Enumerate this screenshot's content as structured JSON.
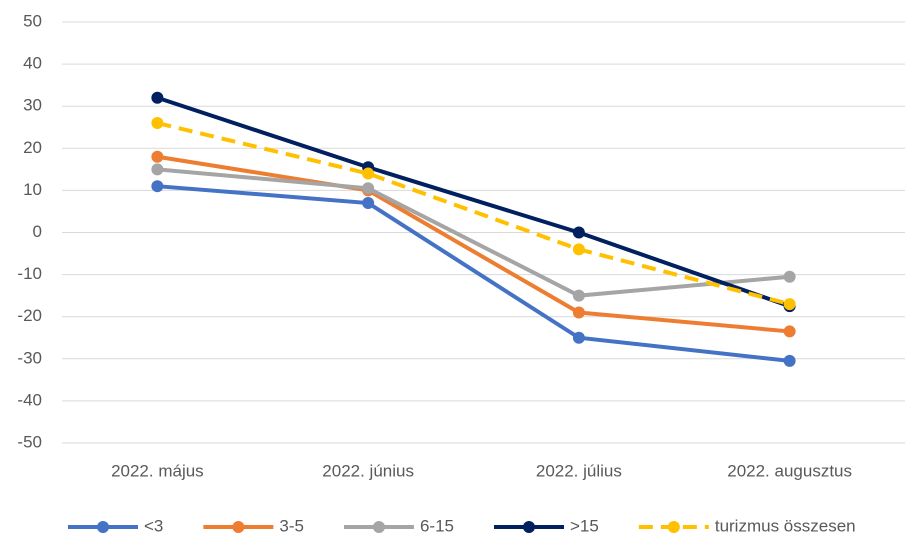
{
  "chart_data": {
    "type": "line",
    "categories": [
      "2022. május",
      "2022. június",
      "2022. július",
      "2022. augusztus"
    ],
    "series": [
      {
        "name": "<3",
        "color": "#4472c4",
        "values": [
          11,
          7,
          -25,
          -30.5
        ]
      },
      {
        "name": "3-5",
        "color": "#ed7d31",
        "values": [
          18,
          10,
          -19,
          -23.5
        ]
      },
      {
        "name": "6-15",
        "color": "#a5a5a5",
        "values": [
          15,
          10.5,
          -15,
          -10.5
        ]
      },
      {
        "name": ">15",
        "color": "#002060",
        "values": [
          32,
          15.5,
          0,
          -17.5
        ]
      },
      {
        "name": "turizmus összesen",
        "color": "#ffc000",
        "dashed": true,
        "values": [
          26,
          14,
          -4,
          -17
        ]
      }
    ],
    "ylim": [
      -50,
      50
    ],
    "yticks": [
      -50,
      -40,
      -30,
      -20,
      -10,
      0,
      10,
      20,
      30,
      40,
      50
    ],
    "grid": true,
    "legend": "bottom"
  }
}
